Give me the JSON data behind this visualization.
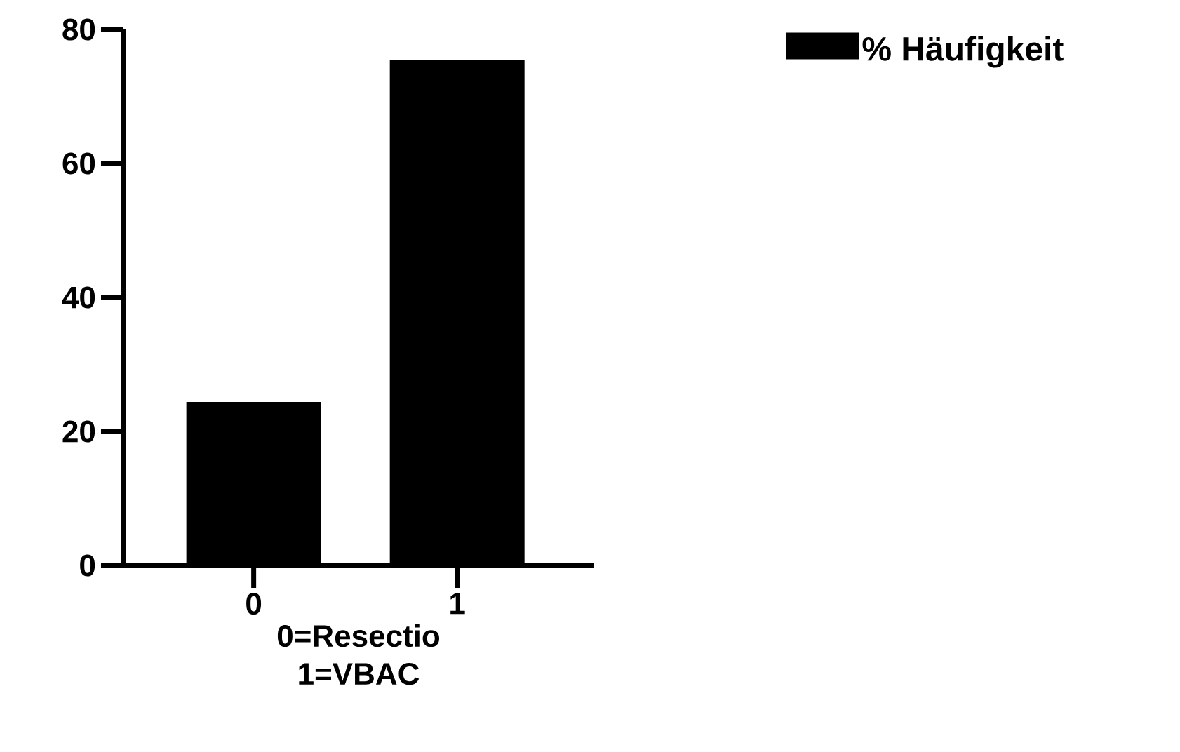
{
  "chart_data": {
    "type": "bar",
    "xlabel": "0=Resectio 1=VBAC",
    "categories": [
      "0",
      "1"
    ],
    "series": [
      {
        "name": "% Häufigkeit",
        "color": "#000000",
        "values": [
          24.4,
          75.4
        ]
      }
    ],
    "ylim": [
      0,
      80
    ],
    "yticks": [
      0,
      20,
      40,
      60,
      80
    ],
    "grid": false,
    "legend": "top right"
  }
}
